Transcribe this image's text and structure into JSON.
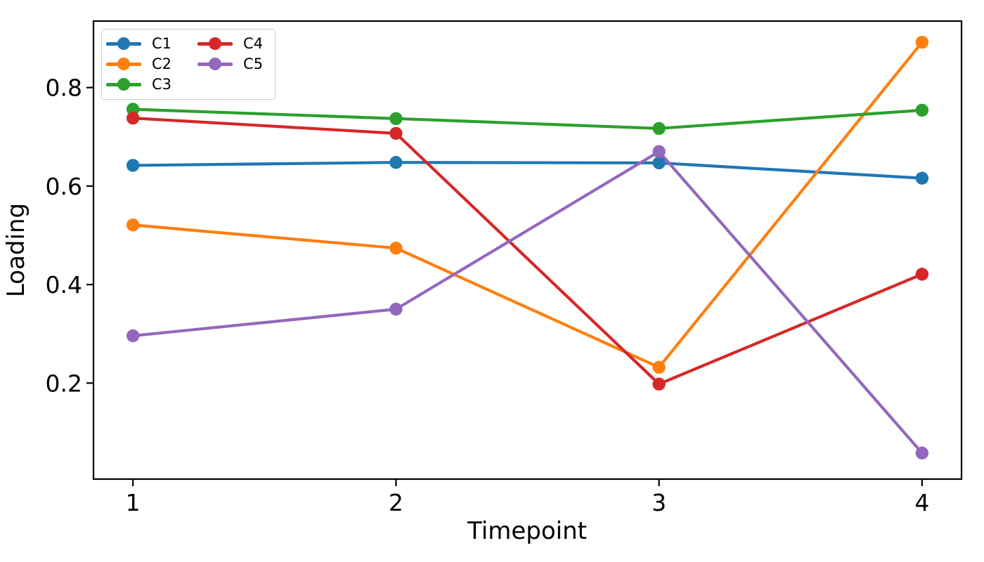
{
  "chart_data": {
    "type": "line",
    "x": [
      1,
      2,
      3,
      4
    ],
    "series": [
      {
        "name": "C1",
        "color": "#1f77b4",
        "values": [
          0.642,
          0.648,
          0.647,
          0.616
        ]
      },
      {
        "name": "C2",
        "color": "#ff7f0e",
        "values": [
          0.521,
          0.474,
          0.232,
          0.892
        ]
      },
      {
        "name": "C3",
        "color": "#2ca02c",
        "values": [
          0.756,
          0.737,
          0.717,
          0.754
        ]
      },
      {
        "name": "C4",
        "color": "#d62728",
        "values": [
          0.738,
          0.707,
          0.198,
          0.421
        ]
      },
      {
        "name": "C5",
        "color": "#9467bd",
        "values": [
          0.296,
          0.35,
          0.67,
          0.058
        ]
      }
    ],
    "title": "",
    "xlabel": "Timepoint",
    "ylabel": "Loading",
    "xlim": [
      0.85,
      4.15
    ],
    "ylim": [
      0.005,
      0.935
    ],
    "xticks": [
      1,
      2,
      3,
      4
    ],
    "xtick_labels": [
      "1",
      "2",
      "3",
      "4"
    ],
    "yticks": [
      0.2,
      0.4,
      0.6,
      0.8
    ],
    "ytick_labels": [
      "0.2",
      "0.4",
      "0.6",
      "0.8"
    ],
    "grid": false,
    "legend_position": "upper-left",
    "legend_columns": 2,
    "spine_color": "#000000",
    "background_color": "#ffffff"
  }
}
